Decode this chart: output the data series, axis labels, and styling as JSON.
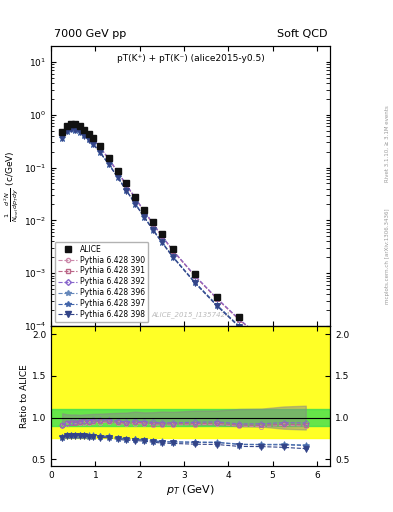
{
  "title_left": "7000 GeV pp",
  "title_right": "Soft QCD",
  "annotation": "pT(K⁺) + pT(K⁻) (alice2015-y0.5)",
  "watermark": "ALICE_2015_I1357424",
  "right_label": "mcplots.cern.ch [arXiv:1306.3436]",
  "right_label2": "Rivet 3.1.10, ≥ 3.1M events",
  "xlabel": "p_T (GeV)",
  "ylabel": "\\frac{1}{N_{inel}} \\frac{d^2N}{dp_{T}dy} (c/GeV)",
  "ylabel_ratio": "Ratio to ALICE",
  "xlim": [
    0,
    6.3
  ],
  "ylim_main": [
    0.0001,
    20
  ],
  "ylim_ratio": [
    0.42,
    2.1
  ],
  "ratio_yticks": [
    0.5,
    1.0,
    1.5,
    2.0
  ],
  "band_green_y1": 0.9,
  "band_green_y2": 1.1,
  "band_yellow_y1": 0.75,
  "band_yellow_y2": 2.1,
  "series": [
    {
      "label": "ALICE",
      "color": "#111111",
      "marker": "s",
      "markersize": 4,
      "linestyle": "none",
      "fillstyle": "full",
      "pt": [
        0.25,
        0.35,
        0.45,
        0.55,
        0.65,
        0.75,
        0.85,
        0.95,
        1.1,
        1.3,
        1.5,
        1.7,
        1.9,
        2.1,
        2.3,
        2.5,
        2.75,
        3.25,
        3.75,
        4.25,
        4.75,
        5.25,
        5.75
      ],
      "vals": [
        0.48,
        0.62,
        0.68,
        0.66,
        0.6,
        0.52,
        0.44,
        0.36,
        0.255,
        0.153,
        0.088,
        0.05,
        0.028,
        0.016,
        0.0093,
        0.0055,
        0.0029,
        0.00095,
        0.00035,
        0.000145,
        6.5e-05,
        3e-05,
        1.4e-05
      ],
      "err": [
        0.025,
        0.025,
        0.025,
        0.025,
        0.02,
        0.02,
        0.018,
        0.016,
        0.012,
        0.008,
        0.005,
        0.003,
        0.002,
        0.001,
        0.0006,
        0.0004,
        0.0002,
        8e-05,
        3e-05,
        1.5e-05,
        7e-06,
        4e-06,
        2e-06
      ]
    },
    {
      "label": "Pythia 6.428 390",
      "color": "#cc88aa",
      "marker": "o",
      "markersize": 3,
      "linestyle": "--",
      "fillstyle": "none",
      "pt": [
        0.25,
        0.35,
        0.45,
        0.55,
        0.65,
        0.75,
        0.85,
        0.95,
        1.1,
        1.3,
        1.5,
        1.7,
        1.9,
        2.1,
        2.3,
        2.5,
        2.75,
        3.25,
        3.75,
        4.25,
        4.75,
        5.25,
        5.75
      ],
      "vals": [
        0.43,
        0.575,
        0.635,
        0.615,
        0.562,
        0.489,
        0.413,
        0.34,
        0.24,
        0.145,
        0.082,
        0.046,
        0.026,
        0.0148,
        0.0085,
        0.005,
        0.00265,
        0.00087,
        0.000322,
        0.00013,
        5.8e-05,
        2.72e-05,
        1.26e-05
      ],
      "ratio": [
        0.896,
        0.927,
        0.934,
        0.932,
        0.937,
        0.941,
        0.938,
        0.944,
        0.941,
        0.948,
        0.932,
        0.92,
        0.929,
        0.925,
        0.914,
        0.909,
        0.914,
        0.916,
        0.92,
        0.897,
        0.892,
        0.907,
        0.9
      ]
    },
    {
      "label": "Pythia 6.428 391",
      "color": "#bb6688",
      "marker": "s",
      "markersize": 3,
      "linestyle": "--",
      "fillstyle": "none",
      "pt": [
        0.25,
        0.35,
        0.45,
        0.55,
        0.65,
        0.75,
        0.85,
        0.95,
        1.1,
        1.3,
        1.5,
        1.7,
        1.9,
        2.1,
        2.3,
        2.5,
        2.75,
        3.25,
        3.75,
        4.25,
        4.75,
        5.25,
        5.75
      ],
      "vals": [
        0.435,
        0.58,
        0.64,
        0.62,
        0.568,
        0.496,
        0.419,
        0.346,
        0.244,
        0.147,
        0.083,
        0.0468,
        0.0264,
        0.015,
        0.00863,
        0.00508,
        0.00268,
        0.000882,
        0.000326,
        0.000132,
        5.9e-05,
        2.76e-05,
        1.28e-05
      ],
      "ratio": [
        0.906,
        0.935,
        0.941,
        0.939,
        0.947,
        0.954,
        0.952,
        0.961,
        0.957,
        0.961,
        0.943,
        0.936,
        0.943,
        0.938,
        0.928,
        0.924,
        0.924,
        0.928,
        0.931,
        0.91,
        0.908,
        0.92,
        0.914
      ]
    },
    {
      "label": "Pythia 6.428 392",
      "color": "#8866cc",
      "marker": "D",
      "markersize": 3,
      "linestyle": "--",
      "fillstyle": "none",
      "pt": [
        0.25,
        0.35,
        0.45,
        0.55,
        0.65,
        0.75,
        0.85,
        0.95,
        1.1,
        1.3,
        1.5,
        1.7,
        1.9,
        2.1,
        2.3,
        2.5,
        2.75,
        3.25,
        3.75,
        4.25,
        4.75,
        5.25,
        5.75
      ],
      "vals": [
        0.438,
        0.583,
        0.644,
        0.624,
        0.573,
        0.501,
        0.423,
        0.35,
        0.247,
        0.149,
        0.0843,
        0.0475,
        0.0268,
        0.01525,
        0.00877,
        0.00516,
        0.00272,
        0.000897,
        0.000332,
        0.000134,
        6.02e-05,
        2.82e-05,
        1.31e-05
      ],
      "ratio": [
        0.913,
        0.94,
        0.947,
        0.945,
        0.955,
        0.964,
        0.962,
        0.972,
        0.969,
        0.974,
        0.958,
        0.95,
        0.957,
        0.953,
        0.943,
        0.938,
        0.938,
        0.944,
        0.949,
        0.924,
        0.926,
        0.94,
        0.936
      ]
    },
    {
      "label": "Pythia 6.428 396",
      "color": "#6688bb",
      "marker": "*",
      "markersize": 5,
      "linestyle": "--",
      "fillstyle": "full",
      "pt": [
        0.25,
        0.35,
        0.45,
        0.55,
        0.65,
        0.75,
        0.85,
        0.95,
        1.1,
        1.3,
        1.5,
        1.7,
        1.9,
        2.1,
        2.3,
        2.5,
        2.75,
        3.25,
        3.75,
        4.25,
        4.75,
        5.25,
        5.75
      ],
      "vals": [
        0.37,
        0.492,
        0.542,
        0.524,
        0.477,
        0.413,
        0.347,
        0.284,
        0.199,
        0.119,
        0.0667,
        0.0373,
        0.0208,
        0.01178,
        0.00672,
        0.00393,
        0.00206,
        0.000672,
        0.000247,
        9.89e-05,
        4.41e-05,
        2.04e-05,
        9.39e-06
      ],
      "ratio": [
        0.771,
        0.794,
        0.797,
        0.794,
        0.795,
        0.795,
        0.789,
        0.789,
        0.781,
        0.778,
        0.758,
        0.746,
        0.743,
        0.736,
        0.723,
        0.714,
        0.71,
        0.707,
        0.706,
        0.682,
        0.678,
        0.68,
        0.671
      ]
    },
    {
      "label": "Pythia 6.428 397",
      "color": "#4466aa",
      "marker": "*",
      "markersize": 5,
      "linestyle": "--",
      "fillstyle": "full",
      "pt": [
        0.25,
        0.35,
        0.45,
        0.55,
        0.65,
        0.75,
        0.85,
        0.95,
        1.1,
        1.3,
        1.5,
        1.7,
        1.9,
        2.1,
        2.3,
        2.5,
        2.75,
        3.25,
        3.75,
        4.25,
        4.75,
        5.25,
        5.75
      ],
      "vals": [
        0.368,
        0.49,
        0.539,
        0.521,
        0.474,
        0.41,
        0.345,
        0.282,
        0.198,
        0.118,
        0.0663,
        0.0371,
        0.0207,
        0.0117,
        0.00668,
        0.0039,
        0.00205,
        0.000668,
        0.000245,
        9.82e-05,
        4.38e-05,
        2.02e-05,
        9.31e-06
      ],
      "ratio": [
        0.767,
        0.79,
        0.792,
        0.789,
        0.79,
        0.789,
        0.784,
        0.783,
        0.776,
        0.771,
        0.753,
        0.742,
        0.739,
        0.731,
        0.718,
        0.709,
        0.707,
        0.703,
        0.7,
        0.677,
        0.674,
        0.673,
        0.665
      ]
    },
    {
      "label": "Pythia 6.428 398",
      "color": "#334488",
      "marker": "v",
      "markersize": 4,
      "linestyle": "--",
      "fillstyle": "full",
      "pt": [
        0.25,
        0.35,
        0.45,
        0.55,
        0.65,
        0.75,
        0.85,
        0.95,
        1.1,
        1.3,
        1.5,
        1.7,
        1.9,
        2.1,
        2.3,
        2.5,
        2.75,
        3.25,
        3.75,
        4.25,
        4.75,
        5.25,
        5.75
      ],
      "vals": [
        0.363,
        0.483,
        0.532,
        0.513,
        0.467,
        0.404,
        0.339,
        0.277,
        0.194,
        0.116,
        0.0651,
        0.0364,
        0.0203,
        0.01148,
        0.00655,
        0.00382,
        0.002,
        0.000647,
        0.000237,
        9.49e-05,
        4.24e-05,
        1.93e-05,
        8.78e-06
      ],
      "ratio": [
        0.756,
        0.779,
        0.782,
        0.777,
        0.778,
        0.777,
        0.771,
        0.769,
        0.761,
        0.758,
        0.74,
        0.728,
        0.725,
        0.718,
        0.704,
        0.695,
        0.69,
        0.681,
        0.677,
        0.654,
        0.652,
        0.643,
        0.627
      ]
    }
  ]
}
